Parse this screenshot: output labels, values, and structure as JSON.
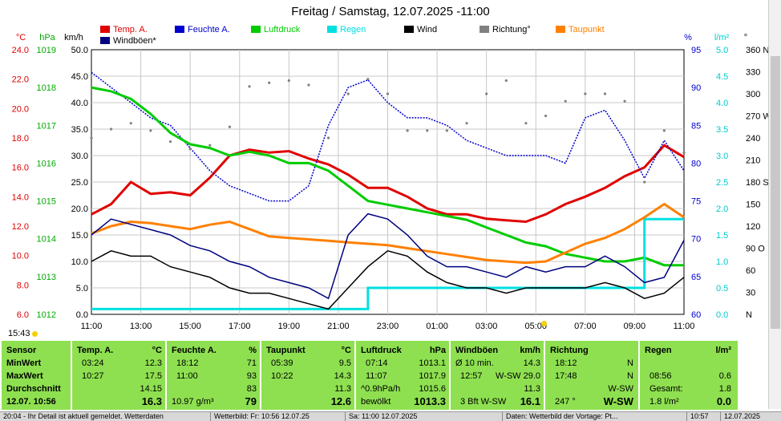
{
  "chart_data": {
    "type": "line",
    "title": "Freitag / Samstag, 12.07.2025  -11:00",
    "x_labels": [
      "11:00",
      "13:00",
      "15:00",
      "17:00",
      "19:00",
      "21:00",
      "23:00",
      "01:00",
      "03:00",
      "05:00",
      "07:00",
      "09:00",
      "11:00"
    ],
    "axes": {
      "temp": {
        "unit": "°C",
        "range": [
          6.0,
          24.0
        ],
        "ticks": [
          "6.0",
          "8.0",
          "10.0",
          "12.0",
          "14.0",
          "16.0",
          "18.0",
          "20.0",
          "22.0",
          "24.0"
        ],
        "color": "#e00000"
      },
      "pressure": {
        "unit": "hPa",
        "range": [
          1012,
          1019
        ],
        "ticks": [
          "1012",
          "1013",
          "1014",
          "1015",
          "1016",
          "1017",
          "1018",
          "1019"
        ],
        "color": "#00aa00"
      },
      "wind": {
        "unit": "km/h",
        "range": [
          0,
          50
        ],
        "ticks": [
          "0.0",
          "5.0",
          "10.0",
          "15.0",
          "20.0",
          "25.0",
          "30.0",
          "35.0",
          "40.0",
          "45.0",
          "50.0"
        ],
        "color": "#000000"
      },
      "humidity": {
        "unit": "%",
        "range": [
          60,
          95
        ],
        "ticks": [
          "60",
          "65",
          "70",
          "75",
          "80",
          "85",
          "90",
          "95"
        ],
        "color": "#0000cc"
      },
      "rain": {
        "unit": "l/m²",
        "range": [
          0.0,
          5.0
        ],
        "ticks": [
          "0.0",
          "0.5",
          "1.0",
          "1.5",
          "2.0",
          "2.5",
          "3.0",
          "3.5",
          "4.0",
          "4.5",
          "5.0"
        ],
        "color": "#00cccc"
      },
      "direction": {
        "unit": "°",
        "ticks": [
          "N",
          "30",
          "60",
          "90 O",
          "120",
          "150",
          "180 S",
          "210",
          "240",
          "270 W",
          "300",
          "330",
          "360 N"
        ]
      }
    },
    "series": [
      {
        "name": "Temp. A.",
        "color": "#e00000",
        "axis": "temp",
        "values": [
          12.8,
          13.5,
          15.0,
          14.2,
          14.3,
          14.1,
          15.3,
          16.8,
          17.2,
          17.0,
          17.1,
          16.6,
          16.2,
          15.5,
          14.6,
          14.6,
          14.0,
          13.2,
          12.8,
          12.8,
          12.5,
          12.4,
          12.3,
          12.8,
          13.5,
          14.0,
          14.6,
          15.4,
          16.0,
          17.5,
          16.7
        ]
      },
      {
        "name": "Feuchte A.",
        "color": "#0000cc",
        "axis": "humidity",
        "values": [
          92,
          90,
          88,
          86,
          85,
          82,
          79,
          77,
          76,
          75,
          75,
          77,
          85,
          90,
          91,
          88,
          86,
          86,
          85,
          83,
          82,
          81,
          81,
          81,
          80,
          86,
          87,
          83,
          78,
          83,
          79
        ]
      },
      {
        "name": "Luftdruck",
        "color": "#00cc00",
        "axis": "pressure",
        "values": [
          1018.0,
          1017.9,
          1017.7,
          1017.3,
          1016.8,
          1016.5,
          1016.4,
          1016.2,
          1016.3,
          1016.2,
          1016.0,
          1016.0,
          1015.8,
          1015.4,
          1015.0,
          1014.9,
          1014.8,
          1014.7,
          1014.6,
          1014.5,
          1014.3,
          1014.1,
          1013.9,
          1013.8,
          1013.6,
          1013.5,
          1013.4,
          1013.4,
          1013.5,
          1013.3,
          1013.3
        ]
      },
      {
        "name": "Regen",
        "color": "#00e0e0",
        "axis": "rain",
        "values": [
          0.1,
          0.1,
          0.1,
          0.1,
          0.1,
          0.1,
          0.1,
          0.1,
          0.1,
          0.1,
          0.1,
          0.1,
          0.1,
          0.1,
          0.5,
          0.5,
          0.5,
          0.5,
          0.5,
          0.5,
          0.5,
          0.5,
          0.5,
          0.5,
          0.5,
          0.5,
          0.5,
          0.5,
          1.8,
          1.8,
          1.8
        ]
      },
      {
        "name": "Wind",
        "color": "#000000",
        "axis": "wind",
        "values": [
          10,
          12,
          11,
          11,
          9,
          8,
          7,
          5,
          4,
          4,
          3,
          2,
          1,
          5,
          9,
          12,
          11,
          8,
          6,
          5,
          5,
          4,
          5,
          5,
          5,
          5,
          6,
          5,
          3,
          4,
          7
        ]
      },
      {
        "name": "Richtung°",
        "color": "#808080",
        "axis": "direction",
        "values": [
          240,
          252,
          260,
          250,
          235,
          225,
          230,
          255,
          310,
          315,
          318,
          312,
          240,
          300,
          320,
          300,
          250,
          250,
          250,
          260,
          300,
          318,
          260,
          270,
          290,
          300,
          300,
          290,
          180,
          250,
          220
        ]
      },
      {
        "name": "Taupunkt",
        "color": "#ff8000",
        "axis": "temp",
        "values": [
          11.5,
          12.0,
          12.3,
          12.2,
          12.0,
          11.8,
          12.1,
          12.3,
          11.8,
          11.3,
          11.2,
          11.1,
          11.0,
          10.9,
          10.8,
          10.7,
          10.5,
          10.3,
          10.1,
          9.9,
          9.7,
          9.6,
          9.5,
          9.6,
          10.2,
          10.8,
          11.2,
          11.8,
          12.6,
          13.5,
          12.6
        ]
      },
      {
        "name": "Windböen*",
        "color": "#000080",
        "axis": "wind",
        "values": [
          15,
          18,
          17,
          16,
          15,
          13,
          12,
          10,
          9,
          7,
          6,
          5,
          3,
          15,
          19,
          18,
          15,
          11,
          9,
          9,
          8,
          7,
          9,
          8,
          9,
          9,
          11,
          9,
          6,
          7,
          14
        ]
      }
    ]
  },
  "strip": {
    "time": "15:43"
  },
  "stats": {
    "sensor": {
      "header": "Sensor",
      "min": "MinWert",
      "max": "MaxWert",
      "avg": "Durchschnitt",
      "now": "12.07. 10:56"
    },
    "temp": {
      "title": "Temp. A.",
      "unit": "°C",
      "min_t": "03:24",
      "min_v": "12.3",
      "max_t": "10:27",
      "max_v": "17.5",
      "avg": "14.15",
      "now": "16.3"
    },
    "hum": {
      "title": "Feuchte A.",
      "unit": "%",
      "min_t": "18:12",
      "min_v": "71",
      "max_t": "11:00",
      "max_v": "93",
      "avg": "83",
      "abs": "10.97 g/m³",
      "now": "79"
    },
    "dew": {
      "title": "Taupunkt",
      "unit": "°C",
      "min_t": "05:39",
      "min_v": "9.5",
      "max_t": "10:22",
      "max_v": "14.3",
      "avg": "11.3",
      "now": "12.6"
    },
    "press": {
      "title": "Luftdruck",
      "unit": "hPa",
      "min_t": "07:14",
      "min_v": "1013.1",
      "max_t": "11:07",
      "max_v": "1017.9",
      "trend": "^0.9hPa/h",
      "trend_v": "1015.6",
      "weather": "bewölkt",
      "now": "1013.3"
    },
    "gust": {
      "title": "Windböen",
      "unit": "km/h",
      "avg_l": "Ø 10 min.",
      "avg_v": "14.3",
      "max_t": "12:57",
      "max_dir": "W-SW",
      "max_v": "29.0",
      "avg": "11.3",
      "bft": "3 Bft W-SW",
      "now": "16.1"
    },
    "dir": {
      "title": "Richtung",
      "min_t": "18:12",
      "min_v": "N",
      "max_t": "17:48",
      "max_v": "N",
      "avg": "W-SW",
      "deg": "247 °",
      "now": "W-SW"
    },
    "rain": {
      "title": "Regen",
      "unit": "l/m²",
      "t": "08:56",
      "v1": "0.6",
      "total_l": "Gesamt:",
      "total_v": "1.8",
      "now_l": "1.8 l/m²",
      "now": "0.0"
    }
  },
  "statusbar": {
    "s1": "20:04 - Ihr Detail ist aktuell gemeldet. Wetterdaten",
    "s2": "Wetterbild: Fr: 10:56 12.07.25",
    "s3": "Sa: 11:00 12.07.2025",
    "s4": "Daten: Wetterbild der Vortage: Pt...",
    "s5": "10:57",
    "s6": "12.07.2025"
  }
}
